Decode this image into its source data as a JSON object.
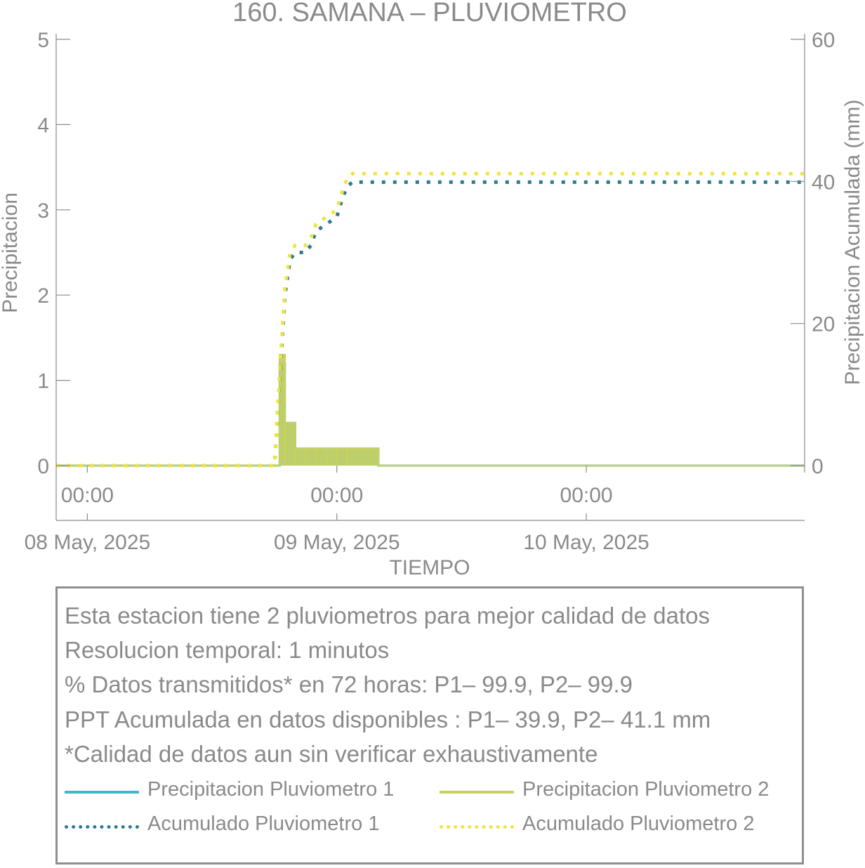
{
  "colors": {
    "p1": "#3fb6c9",
    "p2": "#c8d05f",
    "acc1": "#2c7a94",
    "acc2": "#f2e33c",
    "axis": "#8a8a8a"
  },
  "chart_data": {
    "type": "line",
    "title": "160. SAMANA – PLUVIOMETRO",
    "xlabel": "TIEMPO",
    "ylabel": "Precipitacion",
    "y2label": "Precipitacion Acumulada (mm)",
    "ylim": [
      0,
      5
    ],
    "y2lim": [
      0,
      60
    ],
    "yticks": [
      "0",
      "1",
      "2",
      "3",
      "4",
      "5"
    ],
    "y2ticks": [
      "0",
      "20",
      "40",
      "60"
    ],
    "xlim": [
      "2025-05-07T21:00",
      "2025-05-10T21:00"
    ],
    "xticks": [
      {
        "time": "00:00",
        "date": "08 May, 2025",
        "x": "2025-05-08T00:00"
      },
      {
        "time": "00:00",
        "date": "09 May, 2025",
        "x": "2025-05-09T00:00"
      },
      {
        "time": "00:00",
        "date": "10 May, 2025",
        "x": "2025-05-10T00:00"
      }
    ],
    "grid": false,
    "series": [
      {
        "name": "Precipitacion Pluviometro 1",
        "axis": "left",
        "style": "solid",
        "x": [
          "2025-05-08T18:30",
          "2025-05-08T19:00",
          "2025-05-08T20:00",
          "2025-05-08T21:00",
          "2025-05-08T22:00",
          "2025-05-08T23:00",
          "2025-05-09T00:00",
          "2025-05-09T01:00",
          "2025-05-09T04:00",
          "2025-05-10T21:00"
        ],
        "values": [
          1.2,
          0.5,
          0.2,
          0.2,
          0.2,
          0.2,
          0.2,
          0.2,
          0.0,
          0.0
        ]
      },
      {
        "name": "Precipitacion Pluviometro 2",
        "axis": "left",
        "style": "solid",
        "x": [
          "2025-05-08T18:30",
          "2025-05-08T19:00",
          "2025-05-08T20:00",
          "2025-05-08T21:00",
          "2025-05-08T22:00",
          "2025-05-08T23:00",
          "2025-05-09T00:00",
          "2025-05-09T01:00",
          "2025-05-09T04:00",
          "2025-05-10T21:00"
        ],
        "values": [
          1.3,
          0.5,
          0.2,
          0.2,
          0.2,
          0.2,
          0.2,
          0.2,
          0.0,
          0.0
        ]
      },
      {
        "name": "Acumulado Pluviometro 1",
        "axis": "right",
        "style": "dotted",
        "x": [
          "2025-05-07T21:00",
          "2025-05-08T18:00",
          "2025-05-08T18:30",
          "2025-05-08T19:00",
          "2025-05-08T19:30",
          "2025-05-08T20:00",
          "2025-05-08T21:00",
          "2025-05-08T21:30",
          "2025-05-08T22:00",
          "2025-05-08T23:00",
          "2025-05-09T00:00",
          "2025-05-09T00:30",
          "2025-05-09T01:00",
          "2025-05-09T01:30",
          "2025-05-10T21:00"
        ],
        "values": [
          0,
          0,
          12,
          24,
          29,
          30,
          30,
          31,
          33,
          34,
          35,
          37.5,
          39.3,
          39.9,
          39.9
        ]
      },
      {
        "name": "Acumulado Pluviometro 2",
        "axis": "right",
        "style": "dotted",
        "x": [
          "2025-05-07T21:00",
          "2025-05-08T18:00",
          "2025-05-08T18:30",
          "2025-05-08T19:00",
          "2025-05-08T19:30",
          "2025-05-08T20:00",
          "2025-05-08T21:00",
          "2025-05-08T21:30",
          "2025-05-08T22:00",
          "2025-05-08T23:00",
          "2025-05-09T00:00",
          "2025-05-09T00:30",
          "2025-05-09T01:00",
          "2025-05-09T01:30",
          "2025-05-10T21:00"
        ],
        "values": [
          0,
          0,
          13,
          25,
          30,
          31,
          31,
          32,
          34,
          35,
          36,
          38.5,
          40.5,
          41.1,
          41.1
        ]
      }
    ]
  },
  "info": {
    "lines": [
      "Esta estacion tiene 2 pluviometros para mejor calidad de datos",
      "Resolucion temporal: 1 minutos",
      "% Datos transmitidos* en 72 horas: P1– 99.9, P2– 99.9",
      "PPT Acumulada en datos disponibles : P1– 39.9, P2– 41.1 mm",
      "*Calidad de datos aun sin verificar exhaustivamente"
    ]
  },
  "legend": {
    "items": [
      {
        "label": "Precipitacion Pluviometro 1",
        "color": "#3fb6c9",
        "style": "solid"
      },
      {
        "label": "Precipitacion Pluviometro 2",
        "color": "#c8d05f",
        "style": "solid"
      },
      {
        "label": "Acumulado Pluviometro 1",
        "color": "#2c7a94",
        "style": "dotted"
      },
      {
        "label": "Acumulado Pluviometro 2",
        "color": "#f2e33c",
        "style": "dotted"
      }
    ]
  }
}
